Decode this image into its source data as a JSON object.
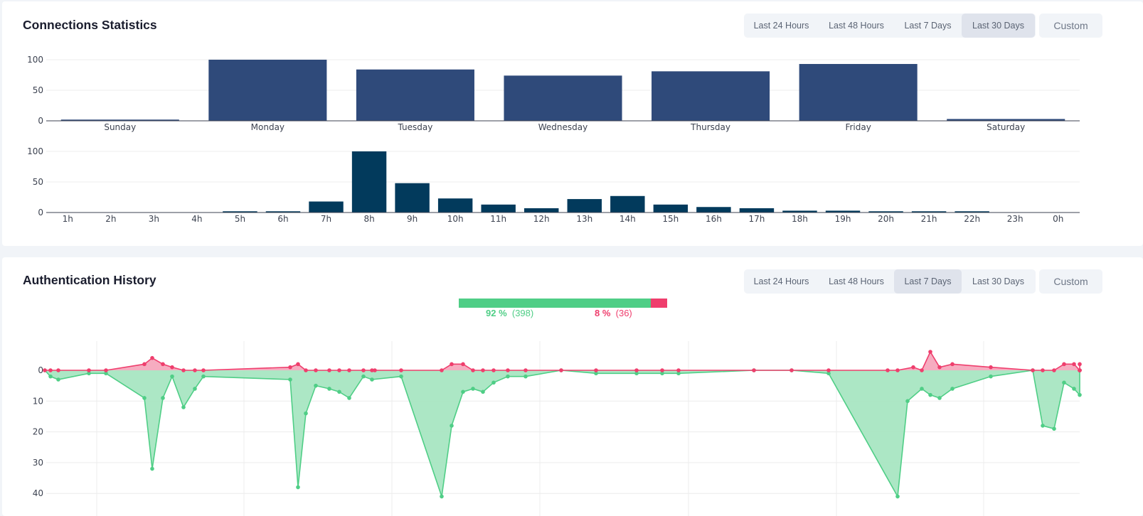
{
  "connections": {
    "title": "Connections Statistics",
    "ranges": [
      "Last 24 Hours",
      "Last 48 Hours",
      "Last 7 Days",
      "Last 30 Days"
    ],
    "active_range": 3,
    "custom_label": "Custom"
  },
  "authentication": {
    "title": "Authentication History",
    "ranges": [
      "Last 24 Hours",
      "Last 48 Hours",
      "Last 7 Days",
      "Last 30 Days"
    ],
    "active_range": 2,
    "custom_label": "Custom",
    "success_pct": "92 %",
    "success_count": "(398)",
    "failure_pct": "8 %",
    "failure_count": "(36)",
    "success_fraction": 0.92
  },
  "colors": {
    "weekday_bar": "#2f4a7a",
    "hour_bar": "#023a5c",
    "success": "#4fce86",
    "success_fill": "#a8e6c2",
    "failure": "#ef3e6d",
    "failure_fill": "#f5a8bd",
    "grid": "#ececec"
  },
  "chart_data": [
    {
      "type": "bar",
      "categories": [
        "Sunday",
        "Monday",
        "Tuesday",
        "Wednesday",
        "Thursday",
        "Friday",
        "Saturday"
      ],
      "values": [
        2,
        100,
        84,
        74,
        81,
        93,
        3
      ],
      "ylim": [
        0,
        100
      ],
      "yticks": [
        0,
        50,
        100
      ]
    },
    {
      "type": "bar",
      "categories": [
        "1h",
        "2h",
        "3h",
        "4h",
        "5h",
        "6h",
        "7h",
        "8h",
        "9h",
        "10h",
        "11h",
        "12h",
        "13h",
        "14h",
        "15h",
        "16h",
        "17h",
        "18h",
        "19h",
        "20h",
        "21h",
        "22h",
        "23h",
        "0h"
      ],
      "values": [
        0,
        0,
        0,
        0,
        2,
        2,
        18,
        100,
        48,
        23,
        13,
        7,
        22,
        27,
        13,
        9,
        7,
        3,
        3,
        2,
        2,
        2,
        0,
        0
      ],
      "ylim": [
        0,
        100
      ],
      "yticks": [
        0,
        50,
        100
      ]
    },
    {
      "type": "area",
      "yticks": [
        0,
        10,
        20,
        30,
        40
      ],
      "ylim": [
        0,
        40
      ],
      "yreversed": true,
      "series": [
        {
          "points": [
            [
              0,
              0
            ],
            [
              1,
              0
            ],
            [
              2,
              0
            ],
            [
              3,
              0
            ],
            [
              4,
              0
            ],
            [
              5,
              2
            ],
            [
              6,
              4
            ],
            [
              7,
              2
            ],
            [
              8,
              1
            ],
            [
              9,
              0
            ],
            [
              10,
              0
            ],
            [
              11,
              0
            ],
            [
              12,
              1
            ],
            [
              13,
              2
            ],
            [
              14,
              0
            ],
            [
              15,
              0
            ],
            [
              16,
              0
            ],
            [
              17,
              0
            ],
            [
              18,
              0
            ],
            [
              19,
              0
            ],
            [
              20,
              0
            ],
            [
              21,
              0
            ],
            [
              22,
              0
            ],
            [
              23,
              0
            ],
            [
              24,
              2
            ],
            [
              25,
              2
            ],
            [
              26,
              0
            ],
            [
              27,
              0
            ],
            [
              28,
              0
            ],
            [
              29,
              0
            ],
            [
              30,
              0
            ],
            [
              31,
              0
            ],
            [
              32,
              0
            ],
            [
              33,
              0
            ],
            [
              34,
              0
            ],
            [
              35,
              0
            ],
            [
              36,
              0
            ],
            [
              37,
              0
            ],
            [
              38,
              0
            ],
            [
              39,
              0
            ],
            [
              40,
              0
            ],
            [
              41,
              1
            ],
            [
              42,
              0
            ],
            [
              43,
              6
            ],
            [
              44,
              1
            ],
            [
              45,
              2
            ],
            [
              46,
              1
            ],
            [
              47,
              0
            ],
            [
              48,
              0
            ],
            [
              49,
              0
            ],
            [
              50,
              2
            ],
            [
              51,
              2
            ],
            [
              52,
              0
            ],
            [
              53,
              0
            ],
            [
              54,
              2
            ],
            [
              55,
              0
            ]
          ]
        },
        {
          "points": [
            [
              0,
              0
            ],
            [
              1,
              2
            ],
            [
              2,
              3
            ],
            [
              3,
              1
            ],
            [
              4,
              1
            ],
            [
              5,
              9
            ],
            [
              6,
              32
            ],
            [
              7,
              9
            ],
            [
              8,
              2
            ],
            [
              9,
              12
            ],
            [
              10,
              6
            ],
            [
              11,
              2
            ],
            [
              12,
              3
            ],
            [
              13,
              38
            ],
            [
              14,
              14
            ],
            [
              15,
              5
            ],
            [
              16,
              6
            ],
            [
              17,
              7
            ],
            [
              18,
              9
            ],
            [
              19,
              2
            ],
            [
              20,
              3
            ],
            [
              21,
              2
            ],
            [
              22,
              41
            ],
            [
              23,
              18
            ],
            [
              24,
              7
            ],
            [
              25,
              6
            ],
            [
              26,
              7
            ],
            [
              27,
              4
            ],
            [
              28,
              2
            ],
            [
              29,
              2
            ],
            [
              30,
              0
            ],
            [
              31,
              1
            ],
            [
              32,
              1
            ],
            [
              33,
              1
            ],
            [
              34,
              1
            ],
            [
              35,
              0
            ],
            [
              36,
              0
            ],
            [
              37,
              1
            ],
            [
              38,
              41
            ],
            [
              39,
              10
            ],
            [
              40,
              6
            ],
            [
              41,
              8
            ],
            [
              42,
              9
            ],
            [
              43,
              6
            ],
            [
              44,
              2
            ],
            [
              45,
              0
            ],
            [
              46,
              18
            ],
            [
              47,
              19
            ],
            [
              48,
              4
            ],
            [
              49,
              6
            ],
            [
              50,
              8
            ],
            [
              51,
              0
            ]
          ]
        }
      ]
    }
  ]
}
